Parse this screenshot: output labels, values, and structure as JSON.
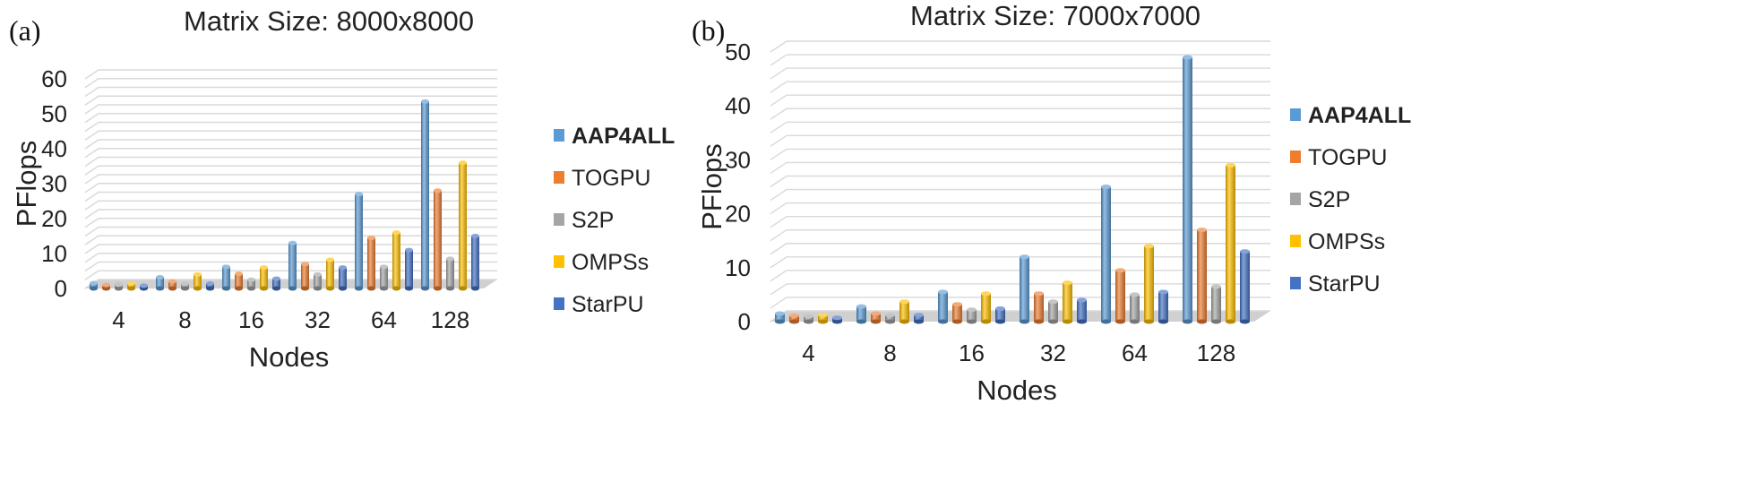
{
  "chart_data": [
    {
      "type": "bar",
      "panel_label": "(a)",
      "title": "Matrix Size: 8000x8000",
      "xlabel": "Nodes",
      "ylabel": "PFlops",
      "ylim": [
        0,
        60
      ],
      "yticks": [
        "0",
        "10",
        "20",
        "30",
        "40",
        "50",
        "60"
      ],
      "categories": [
        "4",
        "8",
        "16",
        "32",
        "64",
        "128"
      ],
      "grid": true,
      "legend_position": "right",
      "series": [
        {
          "name": "AAP4ALL",
          "color": "#5b9bd5",
          "bold": true,
          "values": [
            1.5,
            3.2,
            6.2,
            13.0,
            27.0,
            53.5
          ]
        },
        {
          "name": "TOGPU",
          "color": "#ed7d31",
          "bold": false,
          "values": [
            1.0,
            2.0,
            4.2,
            7.0,
            14.5,
            28.0
          ]
        },
        {
          "name": "S2P",
          "color": "#a5a5a5",
          "bold": false,
          "values": [
            1.1,
            1.3,
            2.5,
            4.0,
            6.2,
            8.5
          ]
        },
        {
          "name": "OMPSs",
          "color": "#ffc000",
          "bold": false,
          "values": [
            1.4,
            4.0,
            6.0,
            8.2,
            16.0,
            36.0
          ]
        },
        {
          "name": "StarPU",
          "color": "#4472c4",
          "bold": false,
          "values": [
            0.8,
            1.4,
            2.8,
            6.0,
            11.0,
            15.0
          ]
        }
      ]
    },
    {
      "type": "bar",
      "panel_label": "(b)",
      "title": "Matrix Size: 7000x7000",
      "xlabel": "Nodes",
      "ylabel": "PFlops",
      "ylim": [
        0,
        50
      ],
      "yticks": [
        "0",
        "10",
        "20",
        "30",
        "40",
        "50"
      ],
      "categories": [
        "4",
        "8",
        "16",
        "32",
        "64",
        "128"
      ],
      "grid": true,
      "legend_position": "right",
      "series": [
        {
          "name": "AAP4ALL",
          "color": "#5b9bd5",
          "bold": true,
          "values": [
            1.5,
            2.8,
            5.5,
            12.0,
            25.0,
            49.0
          ]
        },
        {
          "name": "TOGPU",
          "color": "#ed7d31",
          "bold": false,
          "values": [
            1.1,
            1.5,
            3.2,
            5.2,
            9.5,
            17.0
          ]
        },
        {
          "name": "S2P",
          "color": "#a5a5a5",
          "bold": false,
          "values": [
            1.0,
            1.2,
            2.2,
            3.7,
            5.0,
            6.5
          ]
        },
        {
          "name": "OMPSs",
          "color": "#ffc000",
          "bold": false,
          "values": [
            1.2,
            3.7,
            5.2,
            7.2,
            14.0,
            29.0
          ]
        },
        {
          "name": "StarPU",
          "color": "#4472c4",
          "bold": false,
          "values": [
            0.7,
            1.2,
            2.4,
            4.0,
            5.5,
            13.0
          ]
        }
      ]
    }
  ]
}
